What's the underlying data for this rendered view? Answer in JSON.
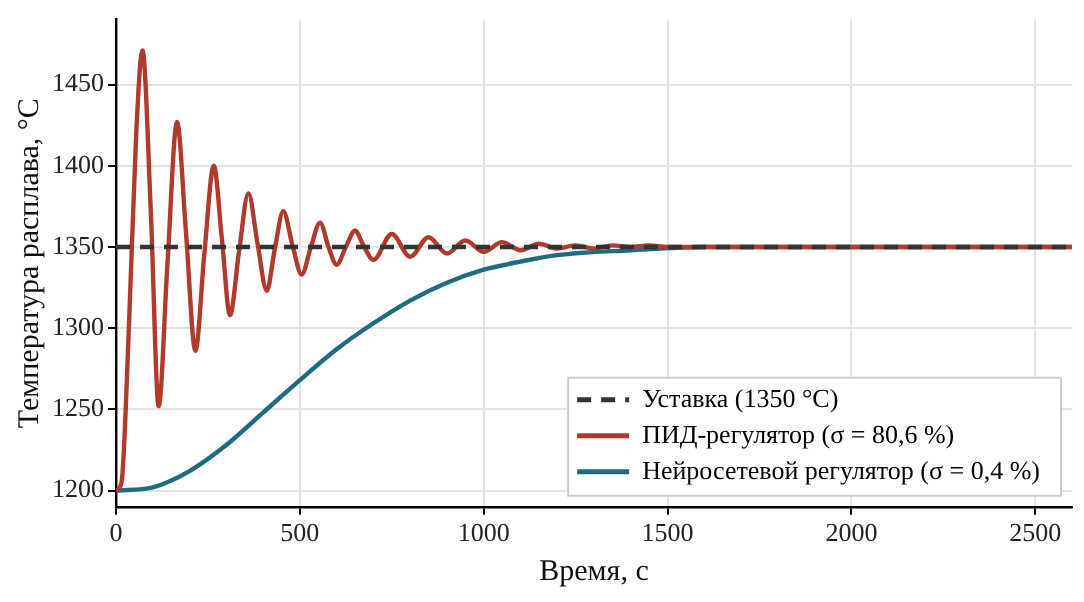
{
  "chart_data": {
    "type": "line",
    "xlabel": "Время, с",
    "ylabel": "Температура расплава, °C",
    "xlim": [
      0,
      2600
    ],
    "xticks": [
      0,
      500,
      1000,
      1500,
      2000,
      2500
    ],
    "ylim": [
      1190,
      1490
    ],
    "yticks": [
      1200,
      1250,
      1300,
      1350,
      1400,
      1450
    ],
    "grid": true,
    "legend": "bottom right",
    "marker": "none",
    "series": [
      {
        "name": "Уставка (1350 °C)",
        "color": "#333333",
        "line_style": "dashed",
        "x": [
          0,
          2600
        ],
        "values": [
          1350,
          1350
        ]
      },
      {
        "name": "ПИД-регулятор (σ = 80,6 %)",
        "color": "#b03a2e",
        "line_style": "solid",
        "x": [
          0,
          15,
          35,
          55,
          72,
          95,
          116,
          140,
          166,
          190,
          216,
          240,
          266,
          288,
          310,
          335,
          360,
          385,
          410,
          432,
          455,
          480,
          505,
          530,
          555,
          578,
          600,
          625,
          650,
          675,
          700,
          750,
          800,
          850,
          900,
          950,
          1000,
          1050,
          1100,
          1150,
          1200,
          1250,
          1300,
          1350,
          1400,
          1450,
          1500,
          1600,
          2600
        ],
        "values": [
          1200,
          1205,
          1300,
          1420,
          1471,
          1370,
          1252,
          1340,
          1427,
          1360,
          1286,
          1345,
          1400,
          1355,
          1308,
          1348,
          1383,
          1352,
          1323,
          1349,
          1372,
          1351,
          1333,
          1350,
          1365,
          1350,
          1339,
          1350,
          1360,
          1350,
          1342,
          1358,
          1344,
          1356,
          1346,
          1354,
          1347,
          1353,
          1348,
          1352,
          1349,
          1351,
          1349,
          1351,
          1350,
          1351,
          1350,
          1350,
          1350
        ]
      },
      {
        "name": "Нейросетевой регулятор (σ = 0,4 %)",
        "color": "#1f6b80",
        "line_style": "solid",
        "x": [
          0,
          100,
          200,
          300,
          400,
          500,
          600,
          700,
          800,
          900,
          1000,
          1100,
          1200,
          1400,
          1600,
          1800,
          2600
        ],
        "values": [
          1200,
          1202,
          1212,
          1228,
          1248,
          1268,
          1287,
          1303,
          1317,
          1328,
          1336,
          1341,
          1345,
          1348,
          1350,
          1350,
          1350
        ]
      }
    ]
  }
}
